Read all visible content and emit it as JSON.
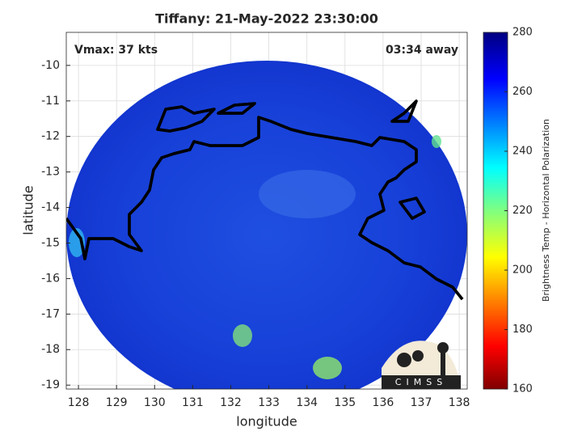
{
  "chart_data": {
    "type": "map",
    "title": "Tiffany: 21-May-2022 23:30:00",
    "annotations": {
      "left": "Vmax: 37 kts",
      "right": "03:34 away"
    },
    "x_label": "longitude",
    "y_label": "latitude",
    "xlim": [
      127.68,
      138.21
    ],
    "xticks": [
      128,
      129,
      130,
      131,
      132,
      133,
      134,
      135,
      136,
      137,
      138
    ],
    "ylim": [
      -19.11,
      -9.07
    ],
    "yticks": [
      -10,
      -11,
      -12,
      -13,
      -14,
      -15,
      -16,
      -17,
      -18,
      -19
    ],
    "grid": true,
    "colorbar": {
      "label": "Brightness Temp - Horizontal Polarization",
      "lim": [
        160,
        280
      ],
      "ticks": [
        160,
        180,
        200,
        220,
        240,
        260,
        280
      ]
    },
    "logo_text": "CIMSS"
  }
}
